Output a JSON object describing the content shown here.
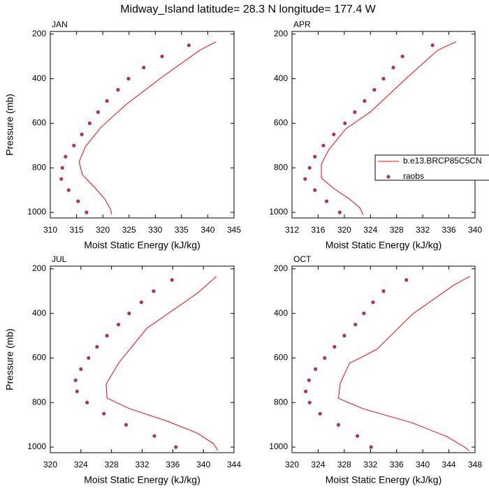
{
  "title": "Midway_Island  latitude= 28.3 N longitude= 177.4 W",
  "chart_data": [
    {
      "type": "line",
      "panel_label": "JAN",
      "xlabel": "Moist Static Energy (kJ/kg)",
      "ylabel": "Pressure (mb)",
      "xlim": [
        310,
        345
      ],
      "xticks": [
        310,
        315,
        320,
        325,
        330,
        335,
        340,
        345
      ],
      "ylim": [
        1025,
        188
      ],
      "yticks": [
        200,
        400,
        600,
        800,
        1000
      ],
      "series": [
        {
          "color": "#ff0000",
          "style": "line",
          "x": [
            341.6,
            338.5,
            331.0,
            324.4,
            319.7,
            316.7,
            315.5,
            316.1,
            318.4,
            320.4,
            321.5,
            321.7
          ],
          "y": [
            234,
            272,
            398,
            517,
            617,
            705,
            774,
            830,
            887,
            940,
            987,
            1009
          ]
        },
        {
          "color": "#b03060",
          "style": "marker",
          "x": [
            336.4,
            331.3,
            327.8,
            324.9,
            322.9,
            320.8,
            319.1,
            317.5,
            316.0,
            314.5,
            312.9,
            312.3,
            312.1,
            313.5,
            315.3,
            316.9
          ],
          "y": [
            250,
            300,
            350,
            400,
            450,
            500,
            550,
            600,
            650,
            700,
            750,
            800,
            850,
            900,
            950,
            1000
          ]
        }
      ]
    },
    {
      "type": "line",
      "panel_label": "APR",
      "xlabel": "Moist Static Energy (kJ/kg)",
      "xlim": [
        312,
        340
      ],
      "xticks": [
        312,
        316,
        320,
        324,
        328,
        332,
        336,
        340
      ],
      "ylim": [
        1025,
        188
      ],
      "yticks": [
        200,
        400,
        600,
        800,
        1000
      ],
      "legend": "right",
      "series": [
        {
          "name": "b.e13.BRCP85C5CN",
          "color": "#ff0000",
          "style": "line",
          "x": [
            337.1,
            334.3,
            329.5,
            324.0,
            320.2,
            317.6,
            316.5,
            316.5,
            318.4,
            320.8,
            322.4,
            322.9
          ],
          "y": [
            234,
            272,
            398,
            549,
            626,
            720,
            783,
            846,
            893,
            940,
            980,
            1012
          ]
        },
        {
          "name": "raobs",
          "color": "#b03060",
          "style": "marker",
          "x": [
            333.5,
            328.9,
            327.5,
            326.0,
            324.6,
            323.1,
            321.6,
            320.1,
            318.4,
            316.8,
            315.5,
            314.7,
            314.0,
            315.5,
            317.3,
            319.3
          ],
          "y": [
            250,
            300,
            350,
            400,
            450,
            500,
            550,
            600,
            650,
            700,
            750,
            800,
            850,
            900,
            950,
            1000
          ]
        }
      ]
    },
    {
      "type": "line",
      "panel_label": "JUL",
      "xlabel": "Moist Static Energy (kJ/kg)",
      "ylabel": "Pressure (mb)",
      "xlim": [
        320,
        344
      ],
      "xticks": [
        320,
        324,
        328,
        332,
        336,
        340,
        344
      ],
      "ylim": [
        1025,
        188
      ],
      "yticks": [
        200,
        400,
        600,
        800,
        1000
      ],
      "series": [
        {
          "color": "#ff0000",
          "style": "line",
          "x": [
            341.7,
            339.2,
            332.6,
            328.9,
            327.3,
            327.4,
            330.3,
            335.3,
            339.2,
            341.3,
            341.9
          ],
          "y": [
            234,
            310,
            467,
            624,
            717,
            780,
            827,
            884,
            937,
            984,
            1015
          ]
        },
        {
          "color": "#b03060",
          "style": "marker",
          "x": [
            335.9,
            333.5,
            331.9,
            330.3,
            328.9,
            327.4,
            326.1,
            325.0,
            324.0,
            323.3,
            323.5,
            324.8,
            327.0,
            329.9,
            333.6,
            336.4
          ],
          "y": [
            250,
            300,
            350,
            400,
            450,
            500,
            550,
            600,
            650,
            700,
            750,
            800,
            850,
            900,
            950,
            1000
          ]
        }
      ]
    },
    {
      "type": "line",
      "panel_label": "OCT",
      "xlabel": "Moist Static Energy (kJ/kg)",
      "xlim": [
        320,
        348
      ],
      "xticks": [
        320,
        324,
        328,
        332,
        336,
        340,
        344,
        348
      ],
      "ylim": [
        1025,
        188
      ],
      "yticks": [
        200,
        400,
        600,
        800,
        1000
      ],
      "series": [
        {
          "color": "#ff0000",
          "style": "line",
          "x": [
            347.2,
            344.8,
            338.4,
            333.0,
            328.8,
            327.4,
            327.1,
            330.9,
            338.4,
            343.7,
            346.4,
            347.1
          ],
          "y": [
            234,
            272,
            404,
            561,
            624,
            712,
            781,
            828,
            891,
            953,
            1000,
            1016
          ]
        },
        {
          "color": "#b03060",
          "style": "marker",
          "x": [
            337.5,
            334.0,
            332.4,
            331.0,
            329.7,
            328.0,
            326.5,
            325.0,
            323.6,
            322.6,
            322.1,
            322.7,
            324.3,
            327.1,
            330.0,
            332.1
          ],
          "y": [
            250,
            300,
            350,
            400,
            450,
            500,
            550,
            600,
            650,
            700,
            750,
            800,
            850,
            900,
            950,
            1000
          ]
        }
      ]
    }
  ]
}
